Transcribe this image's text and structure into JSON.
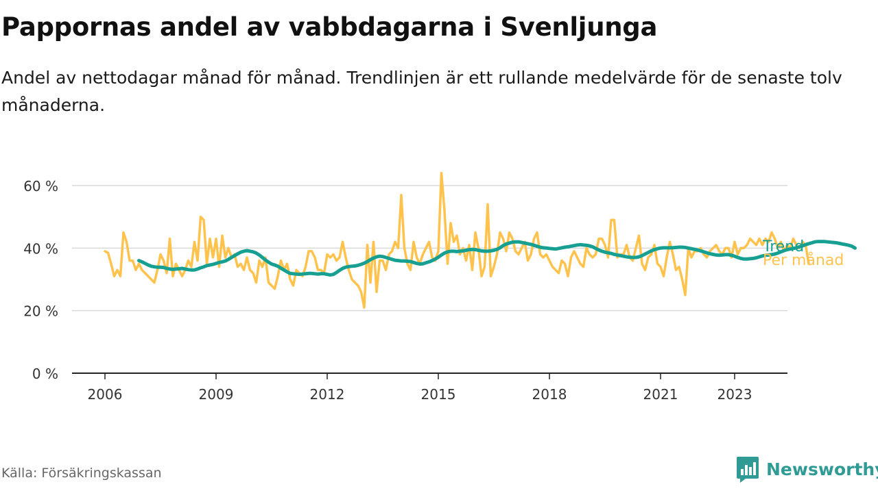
{
  "title": "Pappornas andel av vabbdagarna i Svenljunga",
  "subtitle": "Andel av nettodagar månad för månad. Trendlinjen är ett rullande medelvärde för de senaste tolv månaderna.",
  "source": "Källa: Försäkringskassan",
  "brand": "Newsworthy",
  "colors": {
    "monthly": "#ffc34d",
    "trend": "#17a092",
    "grid": "#d9d9d9",
    "axis": "#222222",
    "brand": "#2f9b94"
  },
  "chart_data": {
    "type": "line",
    "x_unit": "date (year.month fraction)",
    "y_unit": "percent",
    "ylim": [
      0,
      70
    ],
    "xlim": [
      2005.8,
      2024.8
    ],
    "yticks": [
      0,
      20,
      40,
      60
    ],
    "ytick_labels": [
      "0 %",
      "20 %",
      "40 %",
      "60 %"
    ],
    "xticks": [
      2006,
      2009,
      2012,
      2015,
      2018,
      2021,
      2023
    ],
    "xtick_labels": [
      "2006",
      "2009",
      "2012",
      "2015",
      "2018",
      "2021",
      "2023"
    ],
    "grid": "horizontal",
    "legend": "direct labels at line ends (right)",
    "series": [
      {
        "name": "Per månad",
        "start": 2006.0,
        "step": 0.0833333,
        "values": [
          39,
          38.5,
          35,
          31,
          33,
          31,
          45,
          42,
          36,
          36,
          33,
          35,
          33,
          32,
          31,
          30,
          29,
          33,
          38,
          36,
          32,
          43,
          31,
          35,
          33,
          31,
          33,
          36,
          34,
          42,
          36,
          50,
          49,
          35,
          43,
          37,
          43,
          34,
          44,
          37,
          40,
          37,
          38,
          34,
          35,
          33,
          37,
          33,
          32,
          29,
          36,
          34,
          37,
          29,
          28,
          27,
          31,
          36,
          33,
          35,
          30,
          28,
          33,
          32,
          31,
          34,
          39,
          39,
          37,
          33,
          33,
          32,
          38,
          37,
          38,
          36,
          37,
          42,
          37,
          33,
          30,
          29,
          28,
          26,
          21,
          41,
          29,
          42,
          26,
          36,
          36,
          33,
          38,
          39,
          42,
          40,
          57,
          40,
          35,
          33,
          42,
          37,
          35,
          38,
          40,
          42,
          37,
          36,
          39,
          64,
          52,
          35,
          48,
          42,
          44,
          38,
          40,
          36,
          41,
          33,
          45,
          40,
          31,
          34,
          54,
          31,
          34,
          38,
          45,
          43,
          39,
          45,
          43,
          39,
          38,
          40,
          42,
          36,
          38,
          43,
          45,
          38,
          37,
          38,
          36,
          34,
          33,
          32,
          36,
          35,
          31,
          37,
          39,
          37,
          35,
          34,
          40,
          38,
          37,
          38,
          43,
          43,
          41,
          37,
          49,
          49,
          37,
          38,
          38,
          41,
          37,
          36,
          40,
          44,
          35,
          33,
          37,
          38,
          41,
          35,
          34,
          31,
          37,
          42,
          38,
          33,
          34,
          30,
          25,
          40,
          37,
          39,
          39,
          40,
          38,
          37,
          39,
          40,
          41,
          39,
          38,
          40,
          40,
          37,
          42,
          38,
          40,
          40,
          41,
          43,
          42,
          41,
          43,
          41,
          43,
          42,
          45,
          43,
          40,
          42,
          39,
          41,
          40,
          43,
          41,
          40,
          42,
          41,
          35
        ]
      },
      {
        "name": "Trend",
        "start": 2006.9167,
        "step": 0.0833333,
        "values": [
          36,
          35.6,
          35.1,
          34.6,
          34.2,
          34.0,
          33.9,
          33.9,
          33.8,
          33.5,
          33.3,
          33.2,
          33.3,
          33.4,
          33.5,
          33.3,
          33.1,
          33.0,
          33.0,
          33.3,
          33.7,
          34.0,
          34.4,
          34.6,
          34.8,
          35.1,
          35.4,
          35.6,
          35.9,
          36.4,
          37.0,
          37.6,
          38.2,
          38.7,
          39.0,
          39.2,
          39.0,
          38.8,
          38.4,
          37.8,
          37.0,
          36.2,
          35.5,
          34.9,
          34.6,
          34.2,
          33.6,
          33.0,
          32.4,
          31.9,
          31.8,
          31.7,
          31.6,
          31.7,
          31.8,
          31.9,
          31.9,
          31.8,
          31.7,
          31.8,
          31.8,
          31.6,
          31.4,
          31.6,
          32.2,
          32.9,
          33.5,
          33.9,
          34.1,
          34.2,
          34.3,
          34.5,
          34.8,
          35.2,
          35.7,
          36.3,
          36.8,
          37.2,
          37.4,
          37.3,
          37.0,
          36.7,
          36.4,
          36.1,
          36.0,
          35.9,
          35.9,
          35.8,
          35.7,
          35.4,
          35.1,
          34.9,
          35.0,
          35.3,
          35.6,
          36.0,
          36.5,
          37.1,
          37.8,
          38.4,
          38.8,
          39.0,
          39.0,
          38.9,
          39.0,
          39.1,
          39.3,
          39.5,
          39.6,
          39.5,
          39.3,
          39.1,
          39.0,
          39.0,
          39.1,
          39.3,
          39.6,
          40.1,
          40.8,
          41.3,
          41.6,
          41.9,
          42.0,
          42.0,
          41.8,
          41.6,
          41.4,
          41.2,
          40.9,
          40.6,
          40.3,
          40.1,
          40.0,
          39.9,
          39.8,
          39.7,
          39.9,
          40.1,
          40.3,
          40.4,
          40.6,
          40.8,
          41.0,
          41.1,
          41.0,
          40.9,
          40.7,
          40.4,
          39.9,
          39.4,
          39.0,
          38.7,
          38.5,
          38.3,
          38.0,
          37.8,
          37.6,
          37.4,
          37.2,
          37.1,
          37.0,
          37.0,
          37.2,
          37.6,
          38.1,
          38.6,
          39.1,
          39.5,
          39.8,
          40.0,
          40.1,
          40.1,
          40.1,
          40.1,
          40.2,
          40.3,
          40.3,
          40.2,
          40.0,
          39.8,
          39.6,
          39.4,
          39.1,
          38.8,
          38.5,
          38.2,
          38.0,
          37.8,
          37.7,
          37.8,
          37.9,
          37.9,
          37.7,
          37.4,
          37.0,
          36.7,
          36.5,
          36.5,
          36.6,
          36.7,
          36.9,
          37.2,
          37.5,
          37.7,
          37.8,
          37.9,
          38.1,
          38.4,
          38.8,
          39.2,
          39.5,
          39.7,
          39.9,
          40.1,
          40.4,
          40.7,
          41.1,
          41.4,
          41.7,
          42.0,
          42.1,
          42.1,
          42.1,
          42.0,
          41.9,
          41.8,
          41.7,
          41.5,
          41.3,
          41.1,
          40.9,
          40.6,
          40.0
        ]
      }
    ]
  }
}
